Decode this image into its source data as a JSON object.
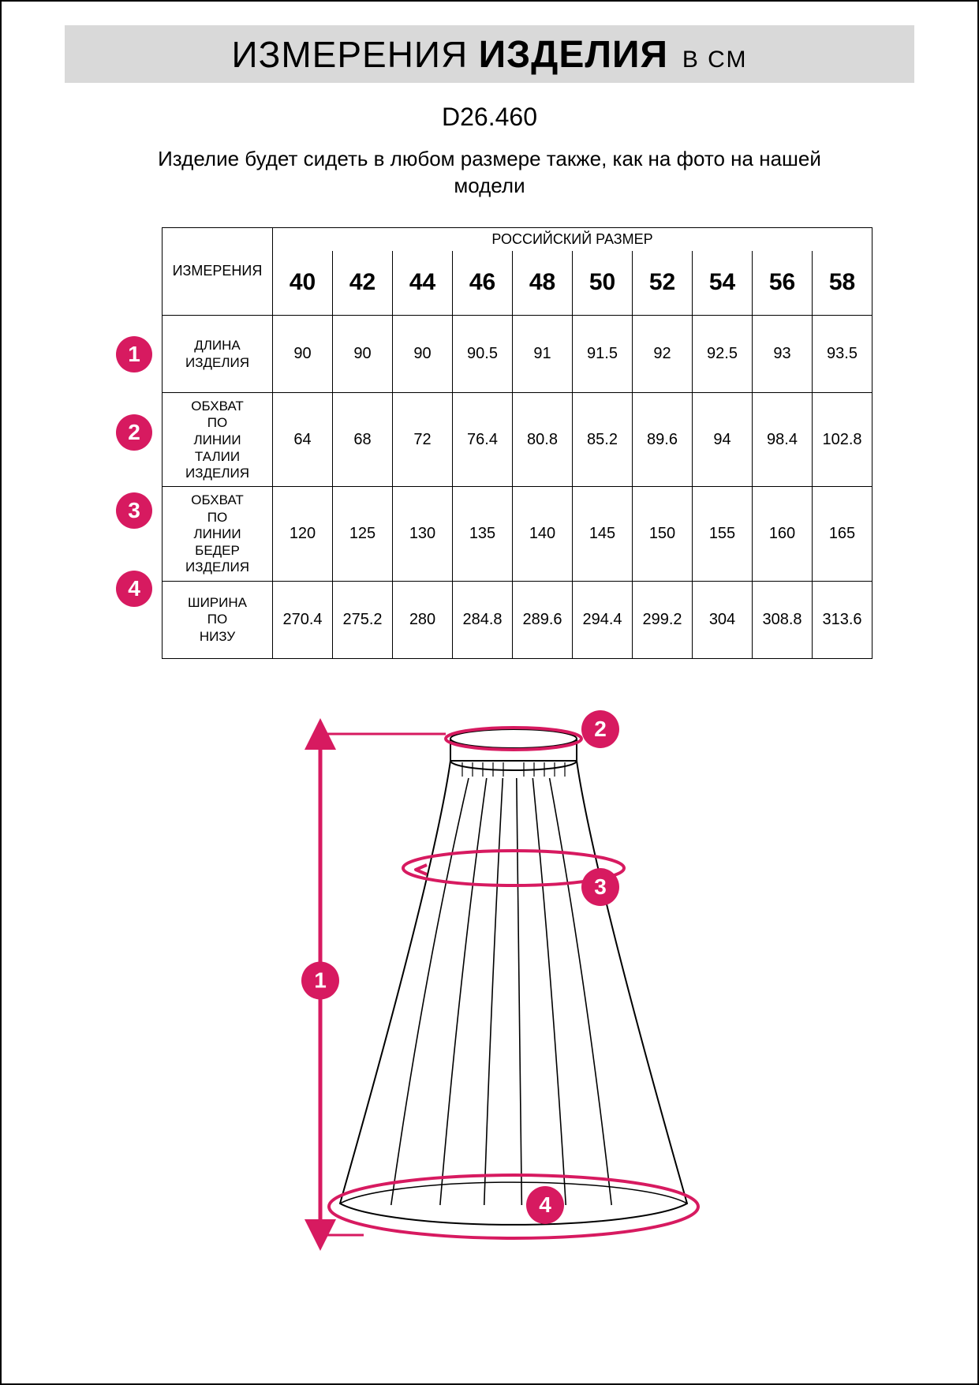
{
  "colors": {
    "accent": "#d71a60",
    "header_bg": "#d9d9d9",
    "border": "#000000",
    "text": "#000000"
  },
  "header": {
    "word1": "ИЗМЕРЕНИЯ",
    "word2": "ИЗДЕЛИЯ",
    "unit": "В СМ"
  },
  "product_code": "D26.460",
  "note": "Изделие будет сидеть в любом размере также, как на фото на нашей модели",
  "table": {
    "measure_header": "ИЗМЕРЕНИЯ",
    "size_group_header": "РОССИЙСКИЙ РАЗМЕР",
    "sizes": [
      "40",
      "42",
      "44",
      "46",
      "48",
      "50",
      "52",
      "54",
      "56",
      "58"
    ],
    "rows": [
      {
        "badge": "1",
        "label": "ДЛИНА ИЗДЕЛИЯ",
        "values": [
          "90",
          "90",
          "90",
          "90.5",
          "91",
          "91.5",
          "92",
          "92.5",
          "93",
          "93.5"
        ]
      },
      {
        "badge": "2",
        "label": "ОБХВАТ ПО ЛИНИИ ТАЛИИ ИЗДЕЛИЯ",
        "values": [
          "64",
          "68",
          "72",
          "76.4",
          "80.8",
          "85.2",
          "89.6",
          "94",
          "98.4",
          "102.8"
        ]
      },
      {
        "badge": "3",
        "label": "ОБХВАТ ПО ЛИНИИ БЕДЕР ИЗДЕЛИЯ",
        "values": [
          "120",
          "125",
          "130",
          "135",
          "140",
          "145",
          "150",
          "155",
          "160",
          "165"
        ]
      },
      {
        "badge": "4",
        "label": "ШИРИНА ПО НИЗУ",
        "values": [
          "270.4",
          "275.2",
          "280",
          "284.8",
          "289.6",
          "294.4",
          "299.2",
          "304",
          "308.8",
          "313.6"
        ]
      }
    ]
  },
  "diagram": {
    "badges": [
      "1",
      "2",
      "3",
      "4"
    ],
    "skirt_stroke": "#000000",
    "skirt_fill": "#ffffff",
    "arrow_color": "#d71a60"
  }
}
